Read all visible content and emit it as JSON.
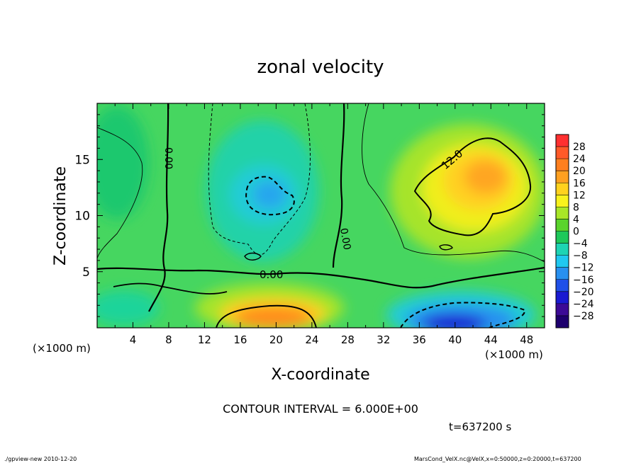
{
  "chart_data": {
    "type": "heatmap",
    "title": "zonal velocity",
    "xlabel": "X-coordinate",
    "ylabel": "Z-coordinate",
    "x_unit": "(×1000 m)",
    "y_unit": "(×1000 m)",
    "xlim": [
      0,
      50
    ],
    "ylim": [
      0,
      20
    ],
    "x_ticks": [
      "4",
      "8",
      "12",
      "16",
      "20",
      "24",
      "28",
      "32",
      "36",
      "40",
      "44",
      "48"
    ],
    "y_ticks": [
      "5",
      "10",
      "15"
    ],
    "colorbar_levels": [
      "28",
      "24",
      "20",
      "16",
      "12",
      "8",
      "4",
      "0",
      "−4",
      "−8",
      "−12",
      "−16",
      "−20",
      "−24",
      "−28"
    ],
    "colorbar_colors": [
      "#ff3030",
      "#ff5a28",
      "#ff7f1e",
      "#ffa020",
      "#ffd21e",
      "#f8f21c",
      "#a8e628",
      "#5ad42c",
      "#1ec85a",
      "#1ed4b4",
      "#20c8f0",
      "#2890f0",
      "#2050e8",
      "#1a1ad2",
      "#3c0a96",
      "#1e006e"
    ],
    "contour_interval": "CONTOUR INTERVAL = 6.000E+00",
    "contour_labels": [
      "12.0",
      "0.00",
      "0.00",
      "0.00"
    ],
    "features": [
      {
        "x": 20,
        "z": 1.2,
        "value": 18
      },
      {
        "x": 43,
        "z": 13.5,
        "value": 16
      },
      {
        "x": 40,
        "z": 0.8,
        "value": -22
      },
      {
        "x": 19.5,
        "z": 11.5,
        "value": -11
      }
    ],
    "time_label": "t=637200 s"
  },
  "footer": {
    "left": "./gpview-new  2010-12-20",
    "right": "MarsCond_VelX.nc@VelX,x=0:50000,z=0:20000,t=637200"
  }
}
